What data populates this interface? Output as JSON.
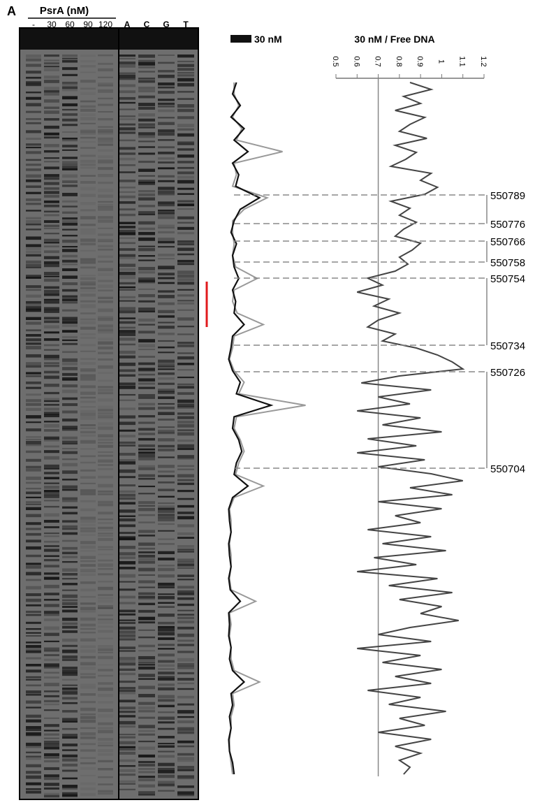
{
  "figure": {
    "panel_label": "A"
  },
  "gel": {
    "title": "PsrA (nM)",
    "lanes": [
      "-",
      "30",
      "60",
      "90",
      "120"
    ],
    "sequencing_lanes": [
      "A",
      "C",
      "G",
      "T"
    ]
  },
  "positions": [
    "550789",
    "550776",
    "550766",
    "550758",
    "550754",
    "550734",
    "550726",
    "550704"
  ],
  "chart_data": [
    {
      "type": "line",
      "series": [
        {
          "name": "30 nM",
          "color": "#111111",
          "values": [
            15,
            10,
            20,
            8,
            25,
            12,
            30,
            10,
            18,
            14,
            45,
            20,
            12,
            8,
            15,
            10,
            12,
            18,
            10,
            14,
            12,
            25,
            10,
            8,
            5,
            10,
            20,
            15,
            60,
            12,
            10,
            18,
            22,
            15,
            12,
            30,
            10,
            5,
            6,
            8,
            5,
            6,
            8,
            5,
            7,
            20,
            5,
            6,
            5,
            8,
            6,
            10,
            25,
            8,
            10,
            6,
            8,
            5,
            6,
            10,
            12
          ]
        },
        {
          "color": "#999999",
          "values": [
            12,
            12,
            18,
            10,
            22,
            15,
            75,
            12,
            15,
            10,
            55,
            25,
            10,
            10,
            12,
            10,
            14,
            42,
            12,
            10,
            16,
            50,
            12,
            10,
            6,
            12,
            25,
            18,
            105,
            15,
            12,
            20,
            25,
            18,
            14,
            50,
            12,
            6,
            8,
            8,
            6,
            8,
            8,
            6,
            8,
            40,
            6,
            8,
            6,
            8,
            8,
            12,
            45,
            10,
            12,
            8,
            8,
            6,
            6,
            8,
            10
          ]
        }
      ]
    },
    {
      "type": "line",
      "title": "30 nM / Free DNA",
      "xlim": [
        0.5,
        1.2
      ],
      "xticks": [
        0.5,
        0.6,
        0.7,
        0.8,
        0.9,
        1,
        1.1,
        1.2
      ],
      "reference_line": 0.7,
      "series": [
        {
          "color": "#444444",
          "values": [
            0.85,
            0.95,
            0.82,
            0.9,
            0.78,
            0.92,
            0.85,
            0.8,
            0.93,
            0.78,
            0.88,
            0.83,
            0.76,
            0.95,
            0.9,
            0.98,
            0.92,
            0.76,
            0.85,
            0.8,
            0.88,
            0.82,
            0.78,
            0.9,
            0.86,
            0.8,
            0.84,
            0.78,
            0.65,
            0.72,
            0.6,
            0.75,
            0.68,
            0.8,
            0.7,
            0.65,
            0.78,
            0.72,
            0.88,
            0.98,
            1.05,
            1.1,
            0.8,
            0.62,
            0.95,
            0.7,
            0.85,
            0.6,
            0.9,
            0.72,
            1.0,
            0.65,
            0.88,
            0.6,
            0.92,
            0.7,
            0.95,
            1.1,
            0.85,
            1.05,
            0.7,
            1.0,
            0.78,
            0.9,
            0.65,
            0.95,
            0.72,
            1.02,
            0.68,
            0.88,
            0.6,
            0.98,
            0.75,
            1.05,
            0.8,
            1.0,
            0.9,
            1.08,
            0.85,
            0.7,
            0.95,
            0.6,
            0.9,
            0.72,
            1.0,
            0.78,
            0.95,
            0.65,
            0.9,
            0.75,
            1.02,
            0.8,
            0.92,
            0.7,
            0.95,
            0.78,
            0.9,
            0.8,
            0.85,
            0.82
          ]
        }
      ]
    }
  ]
}
